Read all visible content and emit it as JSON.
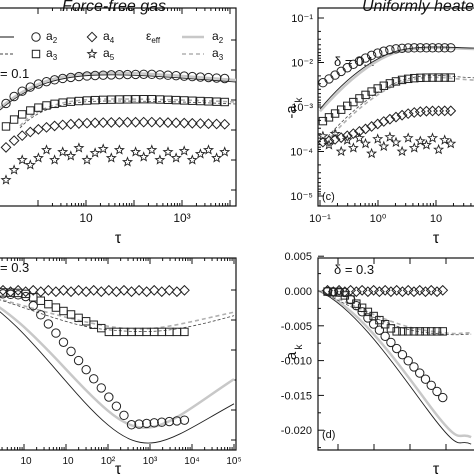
{
  "headers": {
    "left": "Force-free gas",
    "right": "Uniformly heated"
  },
  "legend": {
    "a2": "a",
    "a2_sub": "2",
    "a3": "a",
    "a3_sub": "3",
    "a4": "a",
    "a4_sub": "4",
    "a5": "a",
    "a5_sub": "5",
    "eps": "ε",
    "eps_sub": "eff",
    "theory_a2": "a",
    "theory_a2_sub": "2",
    "theory_a3": "a",
    "theory_a3_sub": "3"
  },
  "colors": {
    "ink": "#222222",
    "theory_gray": "#c8c8c8",
    "dashed_gray": "#b0b0b0"
  },
  "chart_data": [
    {
      "panel": "top-left",
      "type": "scatter",
      "annotation": "= 0.1",
      "xlabel": "τ",
      "x_scale": "log",
      "x_ticks": [
        "10",
        "10³"
      ],
      "series": [
        {
          "name": "a₂",
          "marker": "circle",
          "y": [
            3.0,
            3.1,
            3.2,
            3.2,
            3.2,
            3.1,
            3.1,
            3.0,
            2.9
          ]
        },
        {
          "name": "a₃",
          "marker": "square",
          "y": [
            2.3,
            2.45,
            2.5,
            2.5,
            2.45,
            2.45,
            2.4,
            2.4,
            2.35
          ]
        },
        {
          "name": "a₄",
          "marker": "diamond",
          "y": [
            1.55,
            1.7,
            1.8,
            1.8,
            1.8,
            1.75,
            1.75,
            1.7,
            1.7
          ]
        },
        {
          "name": "a₅",
          "marker": "star",
          "y": [
            1.0,
            1.1,
            0.9,
            1.2,
            1.0,
            1.1,
            0.95,
            1.05,
            1.0
          ]
        }
      ]
    },
    {
      "panel": "top-right",
      "type": "scatter",
      "annotation": "δ = 0.1",
      "panel_label": "(c)",
      "ylabel": "-a",
      "ylabel_sub": "k",
      "xlabel": "τ",
      "x_scale": "log",
      "y_scale": "log",
      "ylim": [
        1e-05,
        0.1
      ],
      "x_ticks": [
        "10⁻¹",
        "10⁰",
        "10"
      ],
      "y_ticks": [
        "10⁻⁵",
        "10⁻⁴",
        "10⁻³",
        "10⁻²",
        "10⁻¹"
      ],
      "series": [
        {
          "name": "a₂",
          "marker": "circle",
          "x": [
            0.12,
            0.2,
            0.4,
            0.8,
            1.5,
            3,
            6,
            12,
            20
          ],
          "y": [
            0.0012,
            0.003,
            0.007,
            0.012,
            0.016,
            0.019,
            0.02,
            0.02,
            0.02
          ]
        },
        {
          "name": "a₃",
          "marker": "square",
          "x": [
            0.15,
            0.25,
            0.4,
            0.7,
            1.2,
            2.5,
            5,
            10,
            20
          ],
          "y": [
            0.00025,
            0.0006,
            0.0012,
            0.002,
            0.003,
            0.004,
            0.0045,
            0.0045,
            0.0045
          ]
        },
        {
          "name": "a₄",
          "marker": "diamond",
          "x": [
            0.2,
            0.3,
            0.5,
            0.8,
            1.5,
            3,
            6,
            12,
            20
          ],
          "y": [
            0.00015,
            0.0002,
            0.0003,
            0.0004,
            0.0005,
            0.0006,
            0.0007,
            0.0007,
            0.0007
          ]
        },
        {
          "name": "a₅",
          "marker": "star",
          "x": [
            0.2,
            0.3,
            0.45,
            0.7,
            1.1,
            1.8,
            3,
            6,
            12
          ],
          "y": [
            0.0002,
            0.00015,
            0.0001,
            0.00015,
            0.0002,
            0.00012,
            0.00018,
            0.00013,
            0.0002
          ]
        }
      ]
    },
    {
      "panel": "bottom-left",
      "type": "scatter",
      "annotation": "= 0.3",
      "xlabel": "τ",
      "x_scale": "log",
      "x_ticks": [
        "10²",
        "10³",
        "10⁴",
        "10⁵"
      ],
      "x_ticks_partial": [
        "10⁰",
        "10¹",
        "10²",
        "10³",
        "10⁴",
        "10⁵"
      ],
      "series": [
        {
          "name": "a₂",
          "marker": "circle",
          "x": [
            0.02,
            0.05,
            0.1,
            0.3,
            1,
            3,
            10,
            30,
            100,
            300,
            1000,
            3000,
            10000,
            30000
          ],
          "y": [
            0,
            -0.0005,
            -0.001,
            -0.002,
            -0.004,
            -0.007,
            -0.011,
            -0.014,
            -0.017,
            -0.019,
            -0.019,
            -0.017,
            -0.012,
            -0.007
          ]
        },
        {
          "name": "a₃",
          "marker": "square",
          "x": [
            0.02,
            0.05,
            0.1,
            0.3,
            1,
            3,
            10,
            30,
            100,
            300,
            1000,
            3000,
            10000,
            30000
          ],
          "y": [
            0,
            -0.0002,
            -0.0005,
            -0.001,
            -0.002,
            -0.003,
            -0.004,
            -0.005,
            -0.0055,
            -0.0058,
            -0.006,
            -0.006,
            -0.0055,
            -0.0045
          ]
        },
        {
          "name": "a₄",
          "marker": "diamond",
          "x": [
            0.02,
            0.05,
            0.1,
            0.3,
            1,
            3,
            10,
            30,
            100,
            300,
            1000,
            3000,
            10000,
            30000
          ],
          "y": [
            0,
            0,
            0,
            0,
            0,
            0,
            0,
            0,
            0,
            0,
            0,
            0,
            0,
            0
          ]
        }
      ]
    },
    {
      "panel": "bottom-right",
      "type": "scatter",
      "annotation": "δ = 0.3",
      "panel_label": "(d)",
      "ylabel": "a",
      "ylabel_sub": "k",
      "xlabel": "τ",
      "x_scale": "log",
      "ylim": [
        -0.021,
        0.006
      ],
      "y_ticks": [
        "0.005",
        "0.000",
        "-0.005",
        "-0.010",
        "-0.015",
        "-0.020"
      ],
      "series": [
        {
          "name": "a₂",
          "marker": "circle",
          "x": [
            0.02,
            0.05,
            0.1,
            0.3,
            1,
            3,
            10,
            30,
            100
          ],
          "y": [
            0,
            -0.0005,
            -0.001,
            -0.003,
            -0.006,
            -0.009,
            -0.012,
            -0.015,
            -0.018
          ]
        },
        {
          "name": "a₃",
          "marker": "square",
          "x": [
            0.02,
            0.05,
            0.1,
            0.3,
            1,
            3,
            10,
            30,
            100
          ],
          "y": [
            0,
            -0.0008,
            -0.0015,
            -0.003,
            -0.0045,
            -0.0055,
            -0.006,
            -0.006,
            -0.006
          ]
        },
        {
          "name": "a₄",
          "marker": "diamond",
          "x": [
            0.02,
            0.05,
            0.1,
            0.3,
            1,
            3,
            10,
            30,
            100
          ],
          "y": [
            0,
            0,
            0,
            0,
            0,
            0,
            0,
            0,
            0
          ]
        }
      ]
    }
  ]
}
